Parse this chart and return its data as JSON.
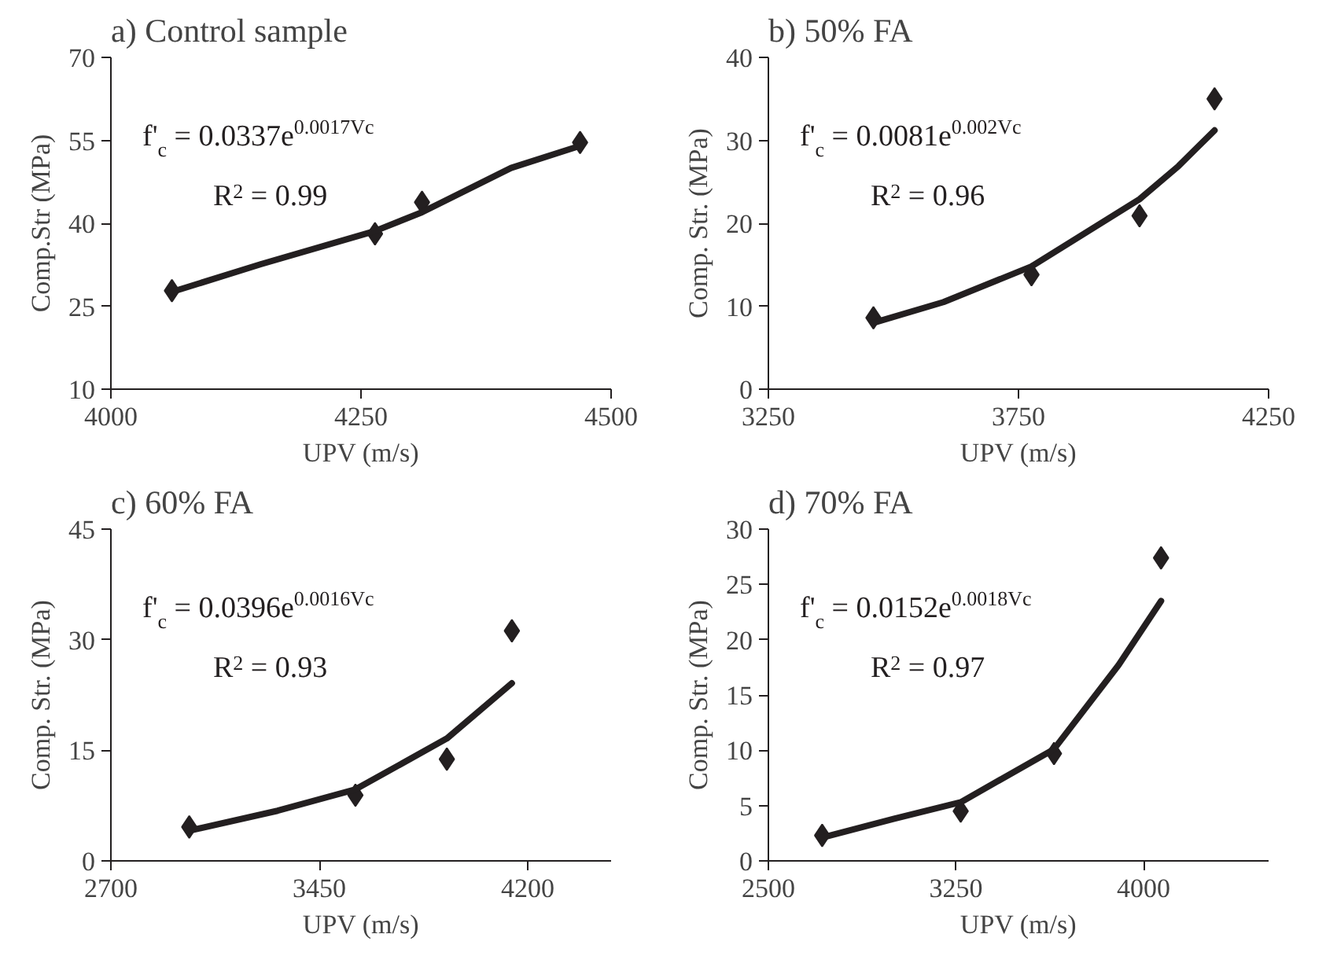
{
  "chart_data": [
    {
      "type": "scatter",
      "title": "a) Control sample",
      "xlabel": "UPV (m/s)",
      "ylabel": "Comp.Str (MPa)",
      "xlim": [
        4000,
        4500
      ],
      "xticks": [
        4000,
        4250,
        4500
      ],
      "ylim": [
        10,
        70
      ],
      "yticks": [
        10,
        25,
        40,
        55,
        70
      ],
      "annotations": [
        "f'$_{c}$ = 0.0337e$^{0.0017Vc}$",
        "R$^{2}$ = 0.99"
      ],
      "series": [
        {
          "marker": "diamond",
          "color": "#231f20",
          "x": [
            4061,
            4264,
            4311,
            4469
          ],
          "values": [
            27.8,
            38.1,
            43.8,
            54.6
          ]
        },
        {
          "type": "line",
          "color": "#231f20",
          "x": [
            4061,
            4150,
            4264,
            4311,
            4400,
            4469
          ],
          "values": [
            27.6,
            32.6,
            38.6,
            42.0,
            50.0,
            54.0
          ]
        }
      ]
    },
    {
      "type": "scatter",
      "title": "b) 50% FA",
      "xlabel": "UPV (m/s)",
      "ylabel": "Comp. Str. (MPa)",
      "xlim": [
        3250,
        4250
      ],
      "xticks": [
        3250,
        3750,
        4250
      ],
      "ylim": [
        0,
        40
      ],
      "yticks": [
        0,
        10,
        20,
        30,
        40
      ],
      "annotations": [
        "f'$_{c}$ = 0.0081e$^{0.002Vc}$",
        "R$^{2}$ = 0.96"
      ],
      "series": [
        {
          "marker": "diamond",
          "color": "#231f20",
          "x": [
            3460,
            3776,
            3992,
            4142
          ],
          "values": [
            8.6,
            13.8,
            20.9,
            35.0
          ]
        },
        {
          "type": "line",
          "color": "#231f20",
          "x": [
            3460,
            3600,
            3776,
            3992,
            4070,
            4142
          ],
          "values": [
            8.0,
            10.5,
            14.8,
            22.9,
            26.9,
            31.2
          ]
        }
      ]
    },
    {
      "type": "scatter",
      "title": "c) 60% FA",
      "xlabel": "UPV (m/s)",
      "ylabel": "Comp. Str. (MPa)",
      "xlim": [
        2700,
        4500
      ],
      "xticks": [
        2700,
        3450,
        4200
      ],
      "ylim": [
        0,
        45
      ],
      "yticks": [
        0,
        15,
        30,
        45
      ],
      "annotations": [
        "f'$_{c}$ = 0.0396e$^{0.0016Vc}$",
        "R$^{2}$ = 0.93"
      ],
      "series": [
        {
          "marker": "diamond",
          "color": "#231f20",
          "x": [
            2982,
            3580,
            3909,
            4143
          ],
          "values": [
            4.6,
            8.9,
            13.8,
            31.2
          ]
        },
        {
          "type": "line",
          "color": "#231f20",
          "x": [
            2982,
            3300,
            3580,
            3909,
            4143
          ],
          "values": [
            4.1,
            6.8,
            9.7,
            16.6,
            24.1
          ]
        }
      ]
    },
    {
      "type": "scatter",
      "title": "d) 70% FA",
      "xlabel": "UPV (m/s)",
      "ylabel": "Comp. Str. (MPa)",
      "xlim": [
        2500,
        4500
      ],
      "xticks": [
        2500,
        3250,
        4000
      ],
      "ylim": [
        0,
        30
      ],
      "yticks": [
        0,
        5,
        10,
        15,
        20,
        25,
        30
      ],
      "annotations": [
        "f'$_{c}$ = 0.0152e$^{0.0018Vc}$",
        "R$^{2}$ = 0.97"
      ],
      "series": [
        {
          "marker": "diamond",
          "color": "#231f20",
          "x": [
            2715,
            3269,
            3642,
            4070
          ],
          "values": [
            2.3,
            4.5,
            9.7,
            27.4
          ]
        },
        {
          "type": "line",
          "color": "#231f20",
          "x": [
            2715,
            3000,
            3269,
            3642,
            3900,
            4070
          ],
          "values": [
            2.1,
            3.8,
            5.3,
            10.1,
            17.7,
            23.5
          ]
        }
      ]
    }
  ]
}
